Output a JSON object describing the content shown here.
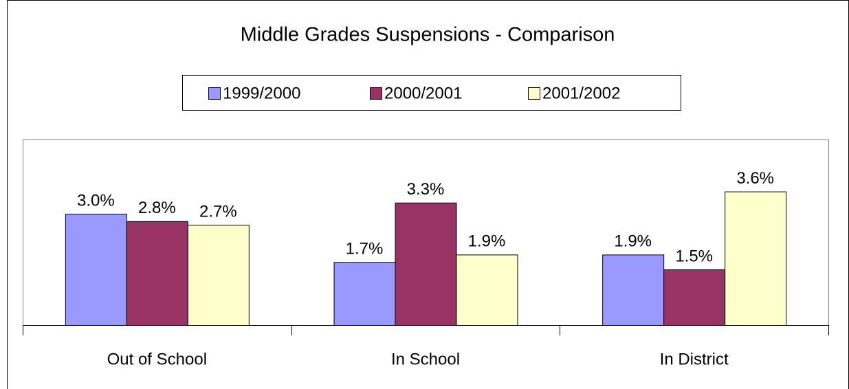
{
  "chart_data": {
    "type": "bar",
    "title": "Middle Grades Suspensions - Comparison",
    "categories": [
      "Out of School",
      "In School",
      "In District"
    ],
    "series": [
      {
        "name": "1999/2000",
        "color": "#9999ff",
        "values": [
          3.0,
          1.7,
          1.9
        ],
        "value_labels": [
          "3.0%",
          "1.7%",
          "1.9%"
        ]
      },
      {
        "name": "2000/2001",
        "color": "#993366",
        "values": [
          2.8,
          3.3,
          1.5
        ],
        "value_labels": [
          "2.8%",
          "3.3%",
          "1.5%"
        ]
      },
      {
        "name": "2001/2002",
        "color": "#ffffcc",
        "values": [
          2.7,
          1.9,
          3.6
        ],
        "value_labels": [
          "2.7%",
          "1.9%",
          "3.6%"
        ]
      }
    ],
    "ylim": [
      0,
      5
    ],
    "legend": "top"
  }
}
